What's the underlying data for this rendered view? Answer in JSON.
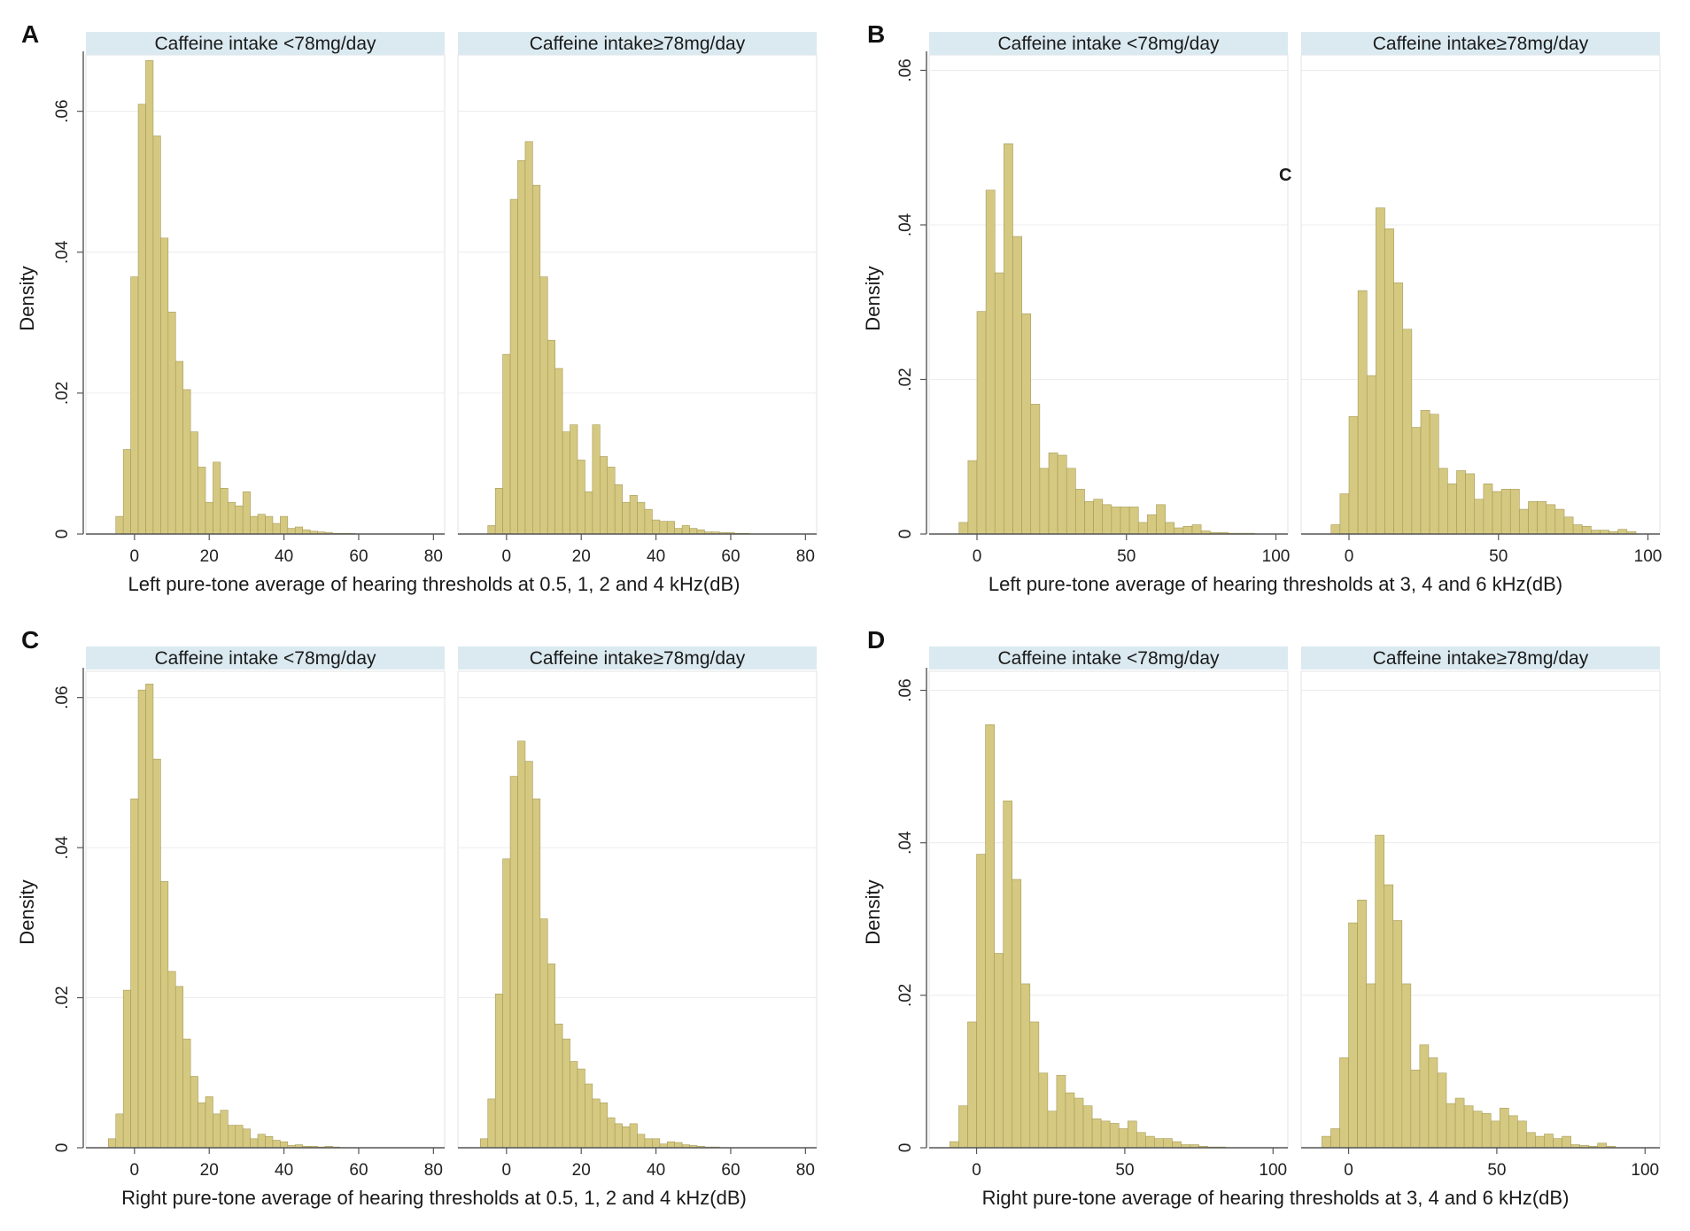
{
  "figure": {
    "stray_mark": "C"
  },
  "chart_data": [
    {
      "panel": "A",
      "type": "bar",
      "subtype": "histogram",
      "xlabel": "Left pure-tone average of hearing thresholds at 0.5, 1, 2 and 4 kHz(dB)",
      "ylabel": "Density",
      "xlim": [
        -13,
        83
      ],
      "ylim": [
        0,
        0.068
      ],
      "xticks": [
        0,
        20,
        40,
        60,
        80
      ],
      "xtick_labels": [
        "0",
        "20",
        "40",
        "60",
        "80"
      ],
      "yticks": [
        0,
        0.02,
        0.04,
        0.06
      ],
      "ytick_labels": [
        "0",
        ".02",
        ".04",
        ".06"
      ],
      "bin_start": -5,
      "bin_width": 2,
      "subplots": [
        {
          "title": "Caffeine intake <78mg/day",
          "values": [
            0.0025,
            0.012,
            0.0365,
            0.061,
            0.0672,
            0.0565,
            0.042,
            0.0315,
            0.0245,
            0.0205,
            0.0145,
            0.0095,
            0.0045,
            0.0102,
            0.0065,
            0.0045,
            0.004,
            0.006,
            0.0025,
            0.0028,
            0.0025,
            0.0015,
            0.0025,
            0.0008,
            0.001,
            0.0006,
            0.0004,
            0.0003,
            0.0002,
            0.0001,
            0.0001,
            0.0001
          ]
        },
        {
          "title": "Caffeine intake≥78mg/day",
          "values": [
            0.0012,
            0.0065,
            0.0255,
            0.0475,
            0.053,
            0.0557,
            0.0495,
            0.0365,
            0.0275,
            0.0235,
            0.0145,
            0.0155,
            0.0105,
            0.006,
            0.0155,
            0.011,
            0.0095,
            0.007,
            0.0045,
            0.0055,
            0.0045,
            0.0035,
            0.002,
            0.0018,
            0.0018,
            0.0008,
            0.0012,
            0.0008,
            0.0006,
            0.0003,
            0.0003,
            0.0002,
            0.0002,
            0.0001,
            0.0001
          ]
        }
      ]
    },
    {
      "panel": "B",
      "type": "bar",
      "subtype": "histogram",
      "xlabel": "Left pure-tone average of hearing thresholds at 3, 4 and 6 kHz(dB)",
      "ylabel": "Density",
      "xlim": [
        -16,
        104
      ],
      "ylim": [
        0,
        0.062
      ],
      "xticks": [
        0,
        50,
        100
      ],
      "xtick_labels": [
        "0",
        "50",
        "100"
      ],
      "yticks": [
        0,
        0.02,
        0.04,
        0.06
      ],
      "ytick_labels": [
        "0",
        ".02",
        ".04",
        ".06"
      ],
      "bin_start": -6,
      "bin_width": 3,
      "subplots": [
        {
          "title": "Caffeine intake <78mg/day",
          "values": [
            0.0015,
            0.0095,
            0.0288,
            0.0445,
            0.0338,
            0.0505,
            0.0385,
            0.0285,
            0.0168,
            0.0085,
            0.0105,
            0.0102,
            0.0085,
            0.0058,
            0.0042,
            0.0045,
            0.0038,
            0.0035,
            0.0035,
            0.0035,
            0.0015,
            0.0025,
            0.0038,
            0.0015,
            0.0008,
            0.001,
            0.0012,
            0.0004,
            0.0002,
            0.0002,
            0.0001,
            0.0001,
            0.0001
          ]
        },
        {
          "title": "Caffeine intake≥78mg/day",
          "values": [
            0.0012,
            0.0052,
            0.0152,
            0.0315,
            0.0205,
            0.0422,
            0.0395,
            0.0325,
            0.0265,
            0.0138,
            0.016,
            0.0155,
            0.0085,
            0.0065,
            0.0082,
            0.0078,
            0.0045,
            0.0065,
            0.0055,
            0.0058,
            0.0058,
            0.0032,
            0.0042,
            0.0042,
            0.0038,
            0.0032,
            0.0022,
            0.0012,
            0.001,
            0.0005,
            0.0005,
            0.0003,
            0.0006,
            0.0003
          ]
        }
      ]
    },
    {
      "panel": "C",
      "type": "bar",
      "subtype": "histogram",
      "xlabel": "Right pure-tone average of hearing thresholds at 0.5, 1, 2 and 4 kHz(dB)",
      "ylabel": "Density",
      "xlim": [
        -13,
        83
      ],
      "ylim": [
        0,
        0.0635
      ],
      "xticks": [
        0,
        20,
        40,
        60,
        80
      ],
      "xtick_labels": [
        "0",
        "20",
        "40",
        "60",
        "80"
      ],
      "yticks": [
        0,
        0.02,
        0.04,
        0.06
      ],
      "ytick_labels": [
        "0",
        ".02",
        ".04",
        ".06"
      ],
      "bin_start": -7,
      "bin_width": 2,
      "subplots": [
        {
          "title": "Caffeine intake <78mg/day",
          "values": [
            0.0012,
            0.0045,
            0.021,
            0.0465,
            0.061,
            0.0618,
            0.0518,
            0.0355,
            0.0235,
            0.0215,
            0.0145,
            0.0095,
            0.006,
            0.0068,
            0.0045,
            0.005,
            0.003,
            0.003,
            0.0025,
            0.0012,
            0.0018,
            0.0015,
            0.001,
            0.0008,
            0.0003,
            0.0004,
            0.0002,
            0.0002,
            0.0001,
            0.0002,
            0.0001
          ]
        },
        {
          "title": "Caffeine intake≥78mg/day",
          "values": [
            0.0012,
            0.0065,
            0.0205,
            0.0385,
            0.0495,
            0.0542,
            0.0515,
            0.0465,
            0.0305,
            0.0245,
            0.0165,
            0.0145,
            0.0115,
            0.0105,
            0.0085,
            0.0065,
            0.006,
            0.004,
            0.0032,
            0.0028,
            0.0032,
            0.0018,
            0.0012,
            0.0012,
            0.0005,
            0.0008,
            0.0007,
            0.0004,
            0.0003,
            0.0002,
            0.0001,
            0.0001
          ]
        }
      ]
    },
    {
      "panel": "D",
      "type": "bar",
      "subtype": "histogram",
      "xlabel": "Right pure-tone average of hearing thresholds at 3, 4 and 6 kHz(dB)",
      "ylabel": "Density",
      "xlim": [
        -16,
        105
      ],
      "ylim": [
        0,
        0.0625
      ],
      "xticks": [
        0,
        50,
        100
      ],
      "xtick_labels": [
        "0",
        "50",
        "100"
      ],
      "yticks": [
        0,
        0.02,
        0.04,
        0.06
      ],
      "ytick_labels": [
        "0",
        ".02",
        ".04",
        ".06"
      ],
      "bin_start": -9,
      "bin_width": 3,
      "subplots": [
        {
          "title": "Caffeine intake <78mg/day",
          "values": [
            0.0008,
            0.0055,
            0.0165,
            0.0385,
            0.0555,
            0.0255,
            0.0455,
            0.0352,
            0.0215,
            0.0165,
            0.0098,
            0.0048,
            0.0095,
            0.0072,
            0.0065,
            0.0055,
            0.0038,
            0.0035,
            0.0032,
            0.0025,
            0.0035,
            0.002,
            0.0015,
            0.0012,
            0.0012,
            0.0008,
            0.0004,
            0.0004,
            0.0002,
            0.0001,
            0.0001
          ]
        },
        {
          "title": "Caffeine intake≥78mg/day",
          "values": [
            0.0015,
            0.0025,
            0.0118,
            0.0295,
            0.0325,
            0.0215,
            0.041,
            0.0345,
            0.0298,
            0.0215,
            0.0102,
            0.0135,
            0.0118,
            0.0098,
            0.0058,
            0.0065,
            0.0055,
            0.0048,
            0.0045,
            0.0035,
            0.0052,
            0.0042,
            0.0035,
            0.002,
            0.0015,
            0.0018,
            0.0012,
            0.0015,
            0.0004,
            0.0003,
            0.0002,
            0.0006,
            0.0002
          ]
        }
      ]
    }
  ]
}
